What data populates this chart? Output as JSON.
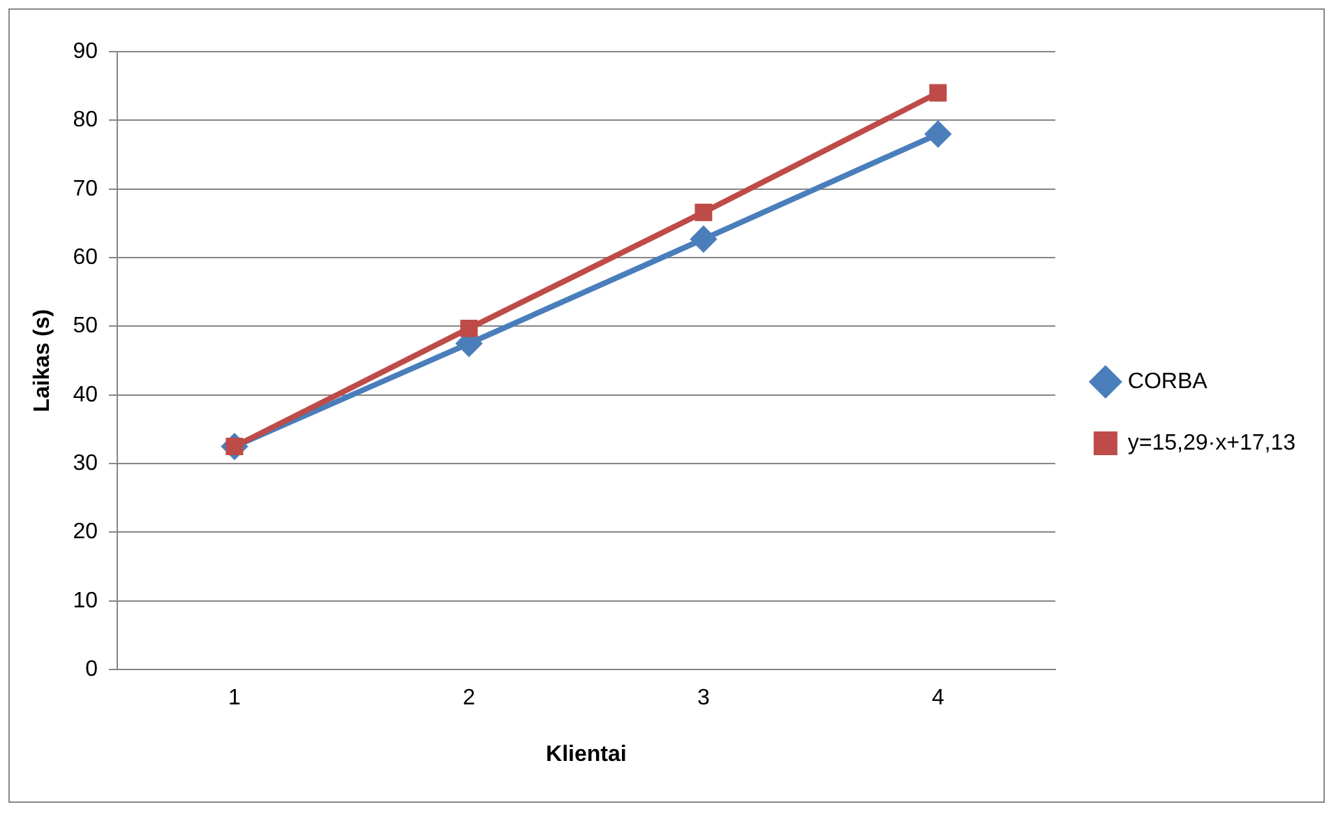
{
  "chart_data": {
    "type": "line",
    "xlabel": "Klientai",
    "ylabel": "Laikas (s)",
    "categories": [
      "1",
      "2",
      "3",
      "4"
    ],
    "series": [
      {
        "name": "CORBA",
        "color": "#4a7ebb",
        "values": [
          32.5,
          47.5,
          62.7,
          78
        ],
        "marker": "diamond"
      },
      {
        "name": "y=15,29·x+17,13",
        "color": "#be4b48",
        "values": [
          32.5,
          49.7,
          66.6,
          84
        ],
        "marker": "square"
      }
    ],
    "ylim": [
      0,
      90
    ],
    "yticks": [
      0,
      10,
      20,
      30,
      40,
      50,
      60,
      70,
      80,
      90
    ],
    "grid": "y",
    "legend": "right"
  }
}
